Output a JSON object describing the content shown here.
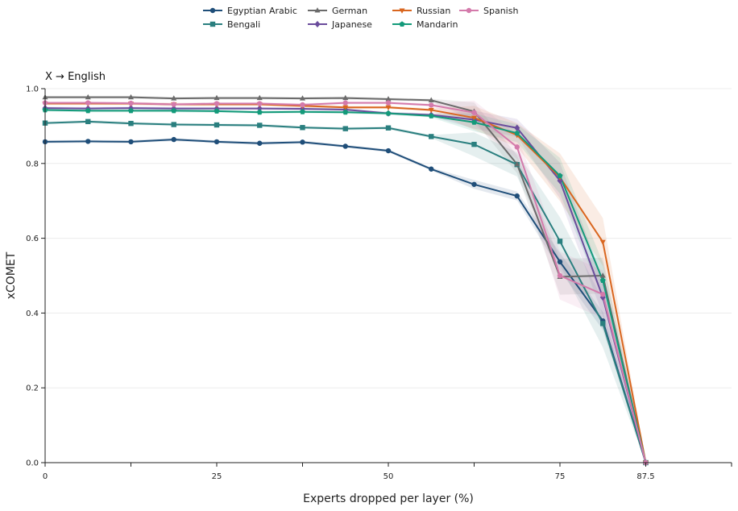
{
  "chart_data": {
    "type": "line",
    "title": "X → English",
    "xlabel": "Experts dropped per layer (%)",
    "ylabel": "xCOMET",
    "xlim": [
      0,
      100
    ],
    "ylim": [
      0,
      1.0
    ],
    "xticks": [
      0,
      25,
      50,
      75,
      87.5
    ],
    "xtick_labels": [
      "0",
      "25",
      "50",
      "75",
      "87.5"
    ],
    "yticks": [
      0,
      0.2,
      0.4,
      0.6,
      0.8,
      1.0
    ],
    "ytick_labels": [
      "0.0",
      "0.2",
      "0.4",
      "0.6",
      "0.8",
      "1.0"
    ],
    "grid": "horizontal",
    "legend_position": "top",
    "x": [
      0,
      6.25,
      12.5,
      18.75,
      25,
      31.25,
      37.5,
      43.75,
      50,
      56.25,
      62.5,
      68.75,
      75,
      81.25,
      87.5
    ],
    "series": [
      {
        "name": "Egyptian Arabic",
        "color": "#1f4e79",
        "marker": "circle",
        "values": [
          0.858,
          0.859,
          0.858,
          0.864,
          0.858,
          0.854,
          0.857,
          0.846,
          0.834,
          0.785,
          0.744,
          0.713,
          0.537,
          0.379,
          0.0
        ],
        "band": 0.015
      },
      {
        "name": "Bengali",
        "color": "#2a7f7f",
        "marker": "square",
        "values": [
          0.908,
          0.912,
          0.907,
          0.904,
          0.903,
          0.902,
          0.896,
          0.893,
          0.895,
          0.872,
          0.851,
          0.797,
          0.592,
          0.372,
          0.0
        ],
        "band": 0.04
      },
      {
        "name": "German",
        "color": "#6b6b6b",
        "marker": "triangle-up",
        "values": [
          0.977,
          0.977,
          0.977,
          0.974,
          0.975,
          0.975,
          0.974,
          0.975,
          0.972,
          0.969,
          0.939,
          0.798,
          0.497,
          0.5,
          0.0
        ],
        "band": 0.03
      },
      {
        "name": "Japanese",
        "color": "#6a4c9c",
        "marker": "diamond",
        "values": [
          0.948,
          0.947,
          0.948,
          0.947,
          0.947,
          0.947,
          0.946,
          0.944,
          0.934,
          0.93,
          0.917,
          0.895,
          0.754,
          0.442,
          0.0
        ],
        "band": 0.03
      },
      {
        "name": "Russian",
        "color": "#d9661f",
        "marker": "triangle-down",
        "values": [
          0.96,
          0.96,
          0.96,
          0.958,
          0.958,
          0.958,
          0.954,
          0.95,
          0.95,
          0.943,
          0.922,
          0.876,
          0.763,
          0.59,
          0.0
        ],
        "band": 0.04
      },
      {
        "name": "Mandarin",
        "color": "#139a7a",
        "marker": "pentagon",
        "values": [
          0.943,
          0.941,
          0.941,
          0.941,
          0.94,
          0.937,
          0.938,
          0.937,
          0.934,
          0.927,
          0.91,
          0.881,
          0.767,
          0.487,
          0.0
        ],
        "band": 0.03
      },
      {
        "name": "Spanish",
        "color": "#d47aab",
        "marker": "circle",
        "values": [
          0.962,
          0.962,
          0.961,
          0.958,
          0.96,
          0.96,
          0.957,
          0.962,
          0.962,
          0.956,
          0.936,
          0.844,
          0.5,
          0.45,
          0.0
        ],
        "band": 0.04
      }
    ]
  }
}
